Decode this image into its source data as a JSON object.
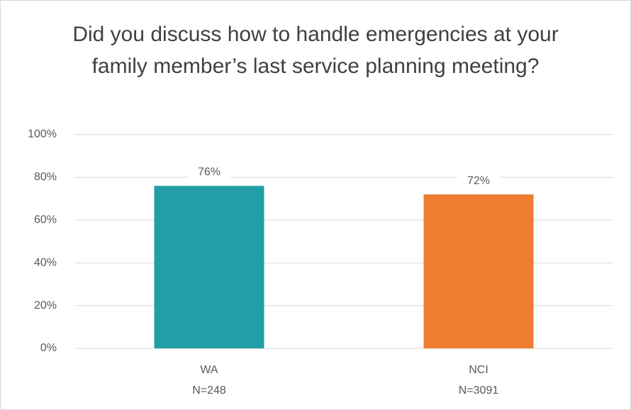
{
  "chart_data": {
    "type": "bar",
    "title": "Did you discuss how to handle emergencies at your family member’s last service planning meeting?",
    "categories": [
      [
        "WA",
        "N=248"
      ],
      [
        "NCI",
        "N=3091"
      ]
    ],
    "values": [
      76,
      72
    ],
    "value_labels": [
      "76%",
      "72%"
    ],
    "colors": [
      "#219ea6",
      "#ed7d31"
    ],
    "ylim": [
      0,
      100
    ],
    "yticks": [
      {
        "value": 0,
        "label": "0%"
      },
      {
        "value": 20,
        "label": "20%"
      },
      {
        "value": 40,
        "label": "40%"
      },
      {
        "value": 60,
        "label": "60%"
      },
      {
        "value": 80,
        "label": "80%"
      },
      {
        "value": 100,
        "label": "100%"
      }
    ],
    "grid": true
  }
}
